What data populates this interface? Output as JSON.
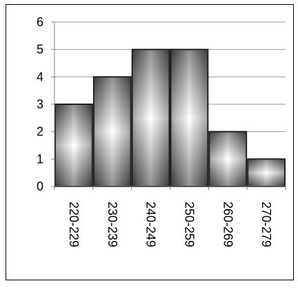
{
  "chart_data": {
    "type": "bar",
    "categories": [
      "220-229",
      "230-239",
      "240-249",
      "250-259",
      "260-269",
      "270-279"
    ],
    "values": [
      3,
      4,
      5,
      5,
      2,
      1
    ],
    "ylim": [
      0,
      6
    ],
    "yticks": [
      "0",
      "1",
      "2",
      "3",
      "4",
      "5",
      "6"
    ],
    "grid": true,
    "legend": "none",
    "colors": {
      "bar_center": "#ffffff",
      "bar_edge": "#3a3a3a",
      "bar_border": "#222222",
      "grid": "#9a9a9a",
      "axis": "#808080"
    }
  }
}
